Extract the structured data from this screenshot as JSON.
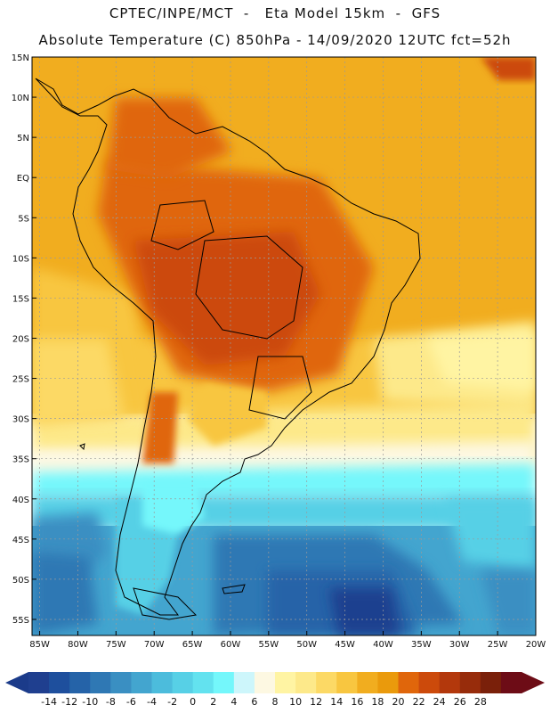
{
  "header": {
    "line1": "CPTEC/INPE/MCT  -   Eta Model 15km  -  GFS",
    "line2": "Absolute Temperature (C) 850hPa - 14/09/2020 12UTC fct=52h"
  },
  "map": {
    "region": "South America",
    "lat_labels": [
      "15N",
      "10N",
      "5N",
      "EQ",
      "5S",
      "10S",
      "15S",
      "20S",
      "25S",
      "30S",
      "35S",
      "40S",
      "45S",
      "50S",
      "55S"
    ],
    "lon_labels": [
      "85W",
      "80W",
      "75W",
      "70W",
      "65W",
      "60W",
      "55W",
      "50W",
      "45W",
      "40W",
      "35W",
      "30W",
      "25W",
      "20W"
    ],
    "lat_range": [
      15,
      -57
    ],
    "lon_range": [
      -86,
      -20
    ]
  },
  "legend": {
    "unit": "C",
    "labels": [
      "-14",
      "-12",
      "-10",
      "-8",
      "-6",
      "-4",
      "-2",
      "0",
      "2",
      "4",
      "6",
      "8",
      "10",
      "12",
      "14",
      "16",
      "18",
      "20",
      "22",
      "24",
      "26",
      "28"
    ],
    "colors": [
      "#1f3f8f",
      "#1e4f9d",
      "#2563a8",
      "#2f78b4",
      "#3a8fc2",
      "#43a5cf",
      "#4cbcdc",
      "#57d0e6",
      "#63e2ef",
      "#74f7fb",
      "#cdf6fb",
      "#fdf8e2",
      "#fff4a3",
      "#fde98a",
      "#fcd965",
      "#f8c640",
      "#f1ad1f",
      "#ea9a0c",
      "#e0660b",
      "#cc4a0b",
      "#b3380c",
      "#972c0b",
      "#7a200a",
      "#6d0c16"
    ],
    "under_color": "#1b3b8a",
    "over_color": "#6d0c16"
  }
}
